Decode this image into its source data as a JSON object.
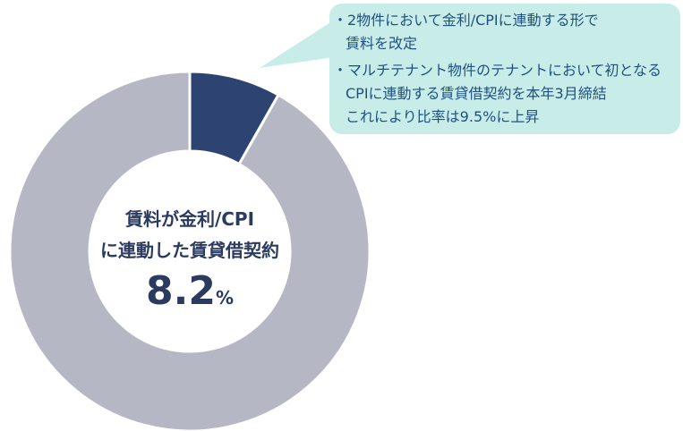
{
  "chart_data": {
    "type": "donut",
    "values": [
      8.2,
      91.8
    ],
    "colors": [
      "#2d4472",
      "#b5b7c5"
    ],
    "center_label": [
      "賃料が金利/CPI",
      "に連動した賃貸借契約"
    ],
    "unit": "%",
    "annotations": [
      "・2物件において金利/CPIに連動する形で",
      "賃料を改定",
      "・マルチテナント物件のテナントにおいて初となる",
      "CPIに連動する賃貸借契約を本年3月締結",
      "これにより比率は9.5%に上昇"
    ]
  }
}
